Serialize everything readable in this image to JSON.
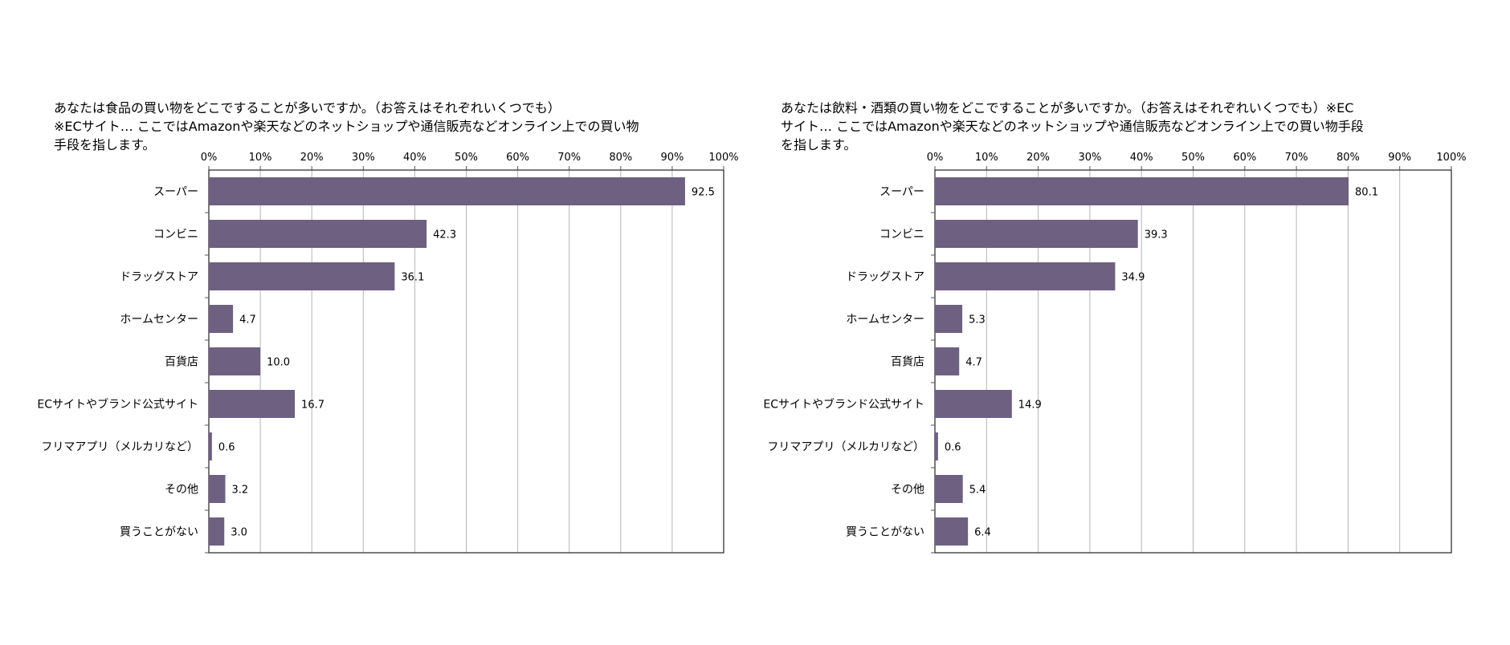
{
  "chart_data": [
    {
      "type": "bar",
      "orientation": "horizontal",
      "title_lines": [
        "あなたは食品の買い物をどこですることが多いですか。（お答えはそれぞれいくつでも）",
        "※ECサイト… ここではAmazonや楽天などのネットショップや通信販売などオンライン上での買い物",
        "手段を指します。"
      ],
      "categories": [
        "スーパー",
        "コンビニ",
        "ドラッグストア",
        "ホームセンター",
        "百貨店",
        "ECサイトやブランド公式サイト",
        "フリマアプリ（メルカリなど）",
        "その他",
        "買うことがない"
      ],
      "values": [
        92.5,
        42.3,
        36.1,
        4.7,
        10.0,
        16.7,
        0.6,
        3.2,
        3.0
      ],
      "value_labels": [
        "92.5",
        "42.3",
        "36.1",
        "4.7",
        "10.0",
        "16.7",
        "0.6",
        "3.2",
        "3.0"
      ],
      "xlim": [
        0,
        100
      ],
      "xticks": [
        "0%",
        "10%",
        "20%",
        "30%",
        "40%",
        "50%",
        "60%",
        "70%",
        "80%",
        "90%",
        "100%"
      ],
      "x_axis_position": "top",
      "grid": true,
      "bar_color": "#6e6080"
    },
    {
      "type": "bar",
      "orientation": "horizontal",
      "title_lines": [
        "あなたは飲料・酒類の買い物をどこですることが多いですか。（お答えはそれぞれいくつでも）※EC",
        "サイト… ここではAmazonや楽天などのネットショップや通信販売などオンライン上での買い物手段",
        "を指します。"
      ],
      "categories": [
        "スーパー",
        "コンビニ",
        "ドラッグストア",
        "ホームセンター",
        "百貨店",
        "ECサイトやブランド公式サイト",
        "フリマアプリ（メルカリなど）",
        "その他",
        "買うことがない"
      ],
      "values": [
        80.1,
        39.3,
        34.9,
        5.3,
        4.7,
        14.9,
        0.6,
        5.4,
        6.4
      ],
      "value_labels": [
        "80.1",
        "39.3",
        "34.9",
        "5.3",
        "4.7",
        "14.9",
        "0.6",
        "5.4",
        "6.4"
      ],
      "xlim": [
        0,
        100
      ],
      "xticks": [
        "0%",
        "10%",
        "20%",
        "30%",
        "40%",
        "50%",
        "60%",
        "70%",
        "80%",
        "90%",
        "100%"
      ],
      "x_axis_position": "top",
      "grid": true,
      "bar_color": "#6e6080"
    }
  ]
}
